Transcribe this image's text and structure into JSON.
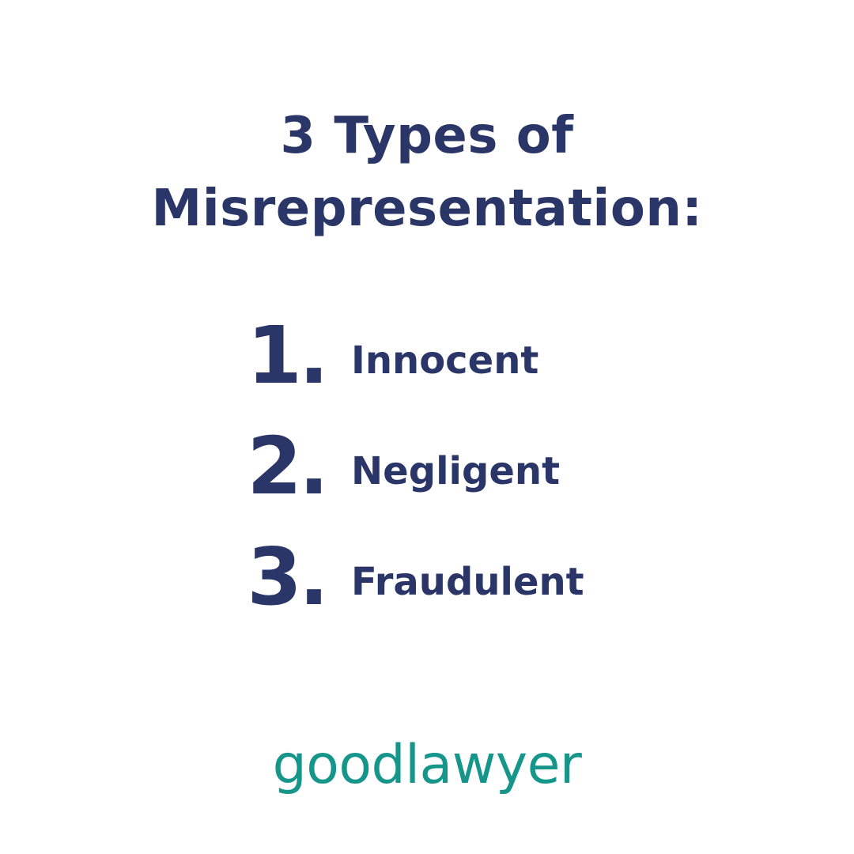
{
  "title": {
    "line1": "3 Types of",
    "line2": "Misrepresentation:"
  },
  "list": {
    "items": [
      {
        "number": "1.",
        "label": "Innocent"
      },
      {
        "number": "2.",
        "label": "Negligent"
      },
      {
        "number": "3.",
        "label": "Fraudulent"
      }
    ]
  },
  "brand": {
    "name": "goodlawyer"
  },
  "colors": {
    "primary_text": "#2a3668",
    "brand": "#16968a",
    "background": "#ffffff"
  }
}
